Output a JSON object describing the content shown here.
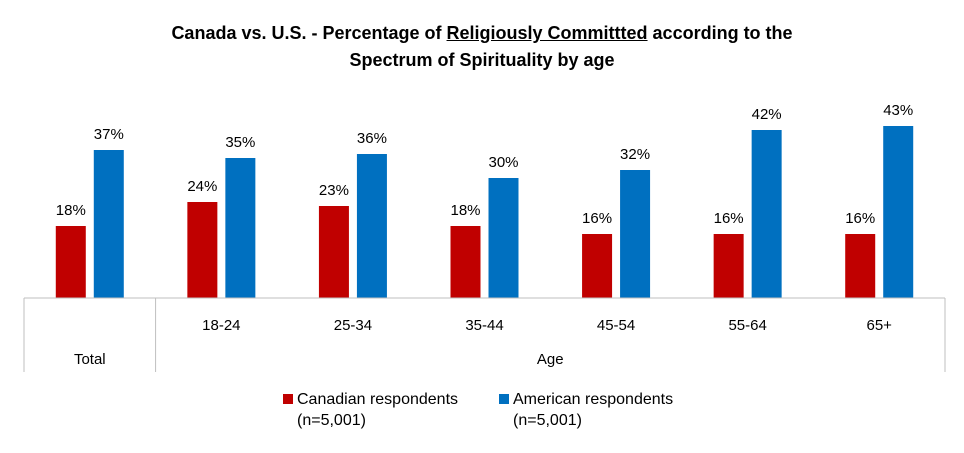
{
  "title": {
    "prefix": "Canada vs. U.S. - Percentage of ",
    "underlined": "Religiously Committted",
    "suffix": " according to the",
    "line2": "Spectrum of Spirituality by age"
  },
  "colors": {
    "canadian": "#C00000",
    "american": "#0070C0",
    "axis": "#BFBFBF"
  },
  "chart_data": {
    "type": "bar",
    "categories": [
      "",
      "18-24",
      "25-34",
      "35-44",
      "45-54",
      "55-64",
      "65+"
    ],
    "groups": [
      {
        "label": "Total",
        "categories": [
          ""
        ]
      },
      {
        "label": "Age",
        "categories": [
          "18-24",
          "25-34",
          "35-44",
          "45-54",
          "55-64",
          "65+"
        ]
      }
    ],
    "series": [
      {
        "name": "Canadian respondents (n=5,001)",
        "values": [
          18,
          24,
          23,
          18,
          16,
          16,
          16
        ]
      },
      {
        "name": "American respondents (n=5,001)",
        "values": [
          37,
          35,
          36,
          30,
          32,
          42,
          43
        ]
      }
    ],
    "data_labels": {
      "canadian": [
        "18%",
        "24%",
        "23%",
        "18%",
        "16%",
        "16%",
        "16%"
      ],
      "american": [
        "37%",
        "35%",
        "36%",
        "30%",
        "32%",
        "42%",
        "43%"
      ]
    },
    "ylim": [
      0,
      45
    ],
    "grid": false,
    "legend_position": "bottom"
  },
  "legend": [
    {
      "line1": "Canadian respondents",
      "line2": "(n=5,001)"
    },
    {
      "line1": "American respondents",
      "line2": "(n=5,001)"
    }
  ]
}
